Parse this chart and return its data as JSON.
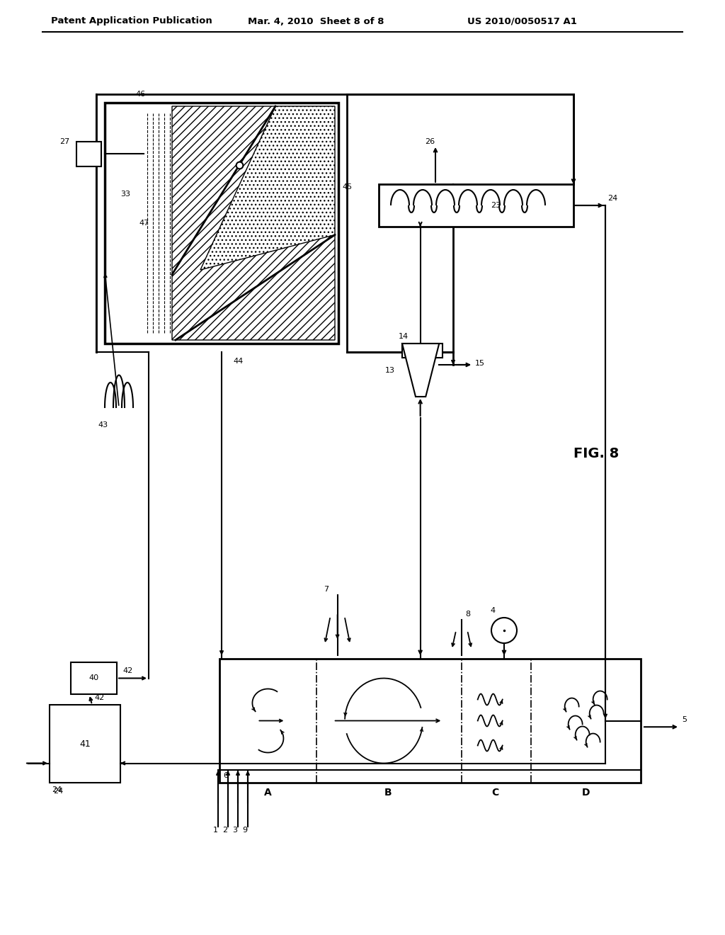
{
  "header_left": "Patent Application Publication",
  "header_mid": "Mar. 4, 2010  Sheet 8 of 8",
  "header_right": "US 2010/0050517 A1",
  "fig_label": "FIG. 8",
  "bg_color": "#ffffff",
  "line_color": "#000000"
}
